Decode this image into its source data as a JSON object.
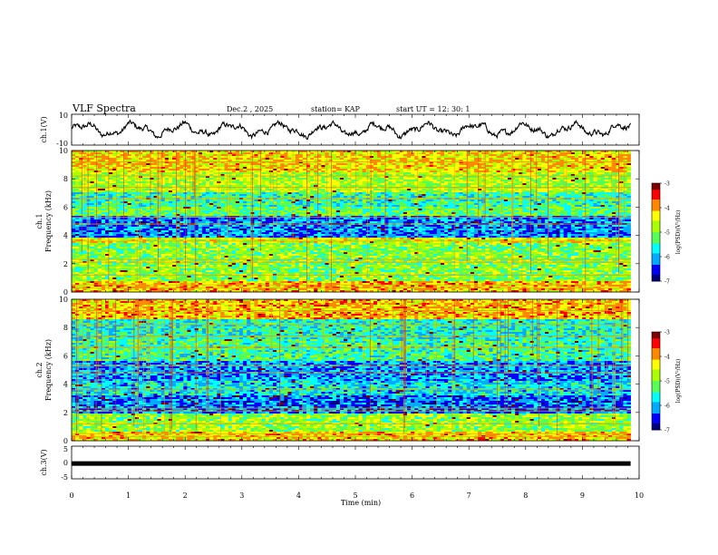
{
  "header": {
    "title": "VLF Spectra",
    "date": "Dec.2 , 2025",
    "station": "station= KAP",
    "start": "start  UT =   12: 30: 1"
  },
  "colors": {
    "ink": "#000000",
    "colormap": [
      "#00007f",
      "#0000ff",
      "#00aaff",
      "#00ffff",
      "#55ff55",
      "#aaff00",
      "#ffff00",
      "#ff8800",
      "#ff0000",
      "#7f0000"
    ]
  },
  "chart_data": [
    {
      "type": "line",
      "name": "ch1-waveform",
      "ylabel": "ch.1(V)",
      "ylim": [
        -10,
        10
      ],
      "yticks": [
        "10",
        "-10"
      ],
      "xlim": [
        0,
        10
      ],
      "note": "noisy waveform oscillating roughly between -6 and +6 V"
    },
    {
      "type": "heatmap",
      "name": "ch1-spectrogram",
      "ylabel_top": "ch.1",
      "ylabel": "Frequency (kHz)",
      "ylim": [
        0,
        10
      ],
      "yticks": [
        "0",
        "2",
        "4",
        "6",
        "8",
        "10"
      ],
      "xlim": [
        0,
        9.85
      ],
      "colorbar": {
        "label": "log(PSD)(V²/Hz)",
        "range": [
          -7,
          -3
        ],
        "ticks": [
          "-3",
          "-4",
          "-5",
          "-6",
          "-7"
        ]
      },
      "bands_khz": [
        {
          "from": 0.0,
          "to": 0.8,
          "level": 0.72
        },
        {
          "from": 0.8,
          "to": 3.4,
          "level": 0.5
        },
        {
          "from": 3.4,
          "to": 3.9,
          "level": 0.62
        },
        {
          "from": 3.9,
          "to": 5.4,
          "level": 0.2
        },
        {
          "from": 5.4,
          "to": 6.0,
          "level": 0.45
        },
        {
          "from": 6.0,
          "to": 7.0,
          "level": 0.38
        },
        {
          "from": 7.0,
          "to": 8.4,
          "level": 0.55
        },
        {
          "from": 8.4,
          "to": 10.0,
          "level": 0.68
        }
      ]
    },
    {
      "type": "heatmap",
      "name": "ch2-spectrogram",
      "ylabel_top": "ch.2",
      "ylabel": "Frequency (kHz)",
      "ylim": [
        0,
        10
      ],
      "yticks": [
        "0",
        "2",
        "4",
        "6",
        "8",
        "10"
      ],
      "xlim": [
        0,
        9.85
      ],
      "colorbar": {
        "label": "log(PSD)(V²/Hz)",
        "range": [
          -7,
          -3
        ],
        "ticks": [
          "-3",
          "-4",
          "-5",
          "-6",
          "-7"
        ]
      },
      "bands_khz": [
        {
          "from": 0.0,
          "to": 0.7,
          "level": 0.7
        },
        {
          "from": 0.7,
          "to": 1.9,
          "level": 0.52
        },
        {
          "from": 1.9,
          "to": 3.2,
          "level": 0.18
        },
        {
          "from": 3.2,
          "to": 4.2,
          "level": 0.3
        },
        {
          "from": 4.2,
          "to": 5.6,
          "level": 0.22
        },
        {
          "from": 5.6,
          "to": 7.2,
          "level": 0.4
        },
        {
          "from": 7.2,
          "to": 8.6,
          "level": 0.35
        },
        {
          "from": 8.6,
          "to": 10.0,
          "level": 0.72
        }
      ]
    },
    {
      "type": "line",
      "name": "ch3-waveform",
      "ylabel": "ch.3(V)",
      "ylim": [
        -5,
        5
      ],
      "yticks": [
        "5",
        "0",
        "-5"
      ],
      "xlim": [
        0,
        10
      ],
      "xlabel": "Time (min)",
      "xticks": [
        "0",
        "1",
        "2",
        "3",
        "4",
        "5",
        "6",
        "7",
        "8",
        "9",
        "10"
      ],
      "level": -0.3
    }
  ]
}
